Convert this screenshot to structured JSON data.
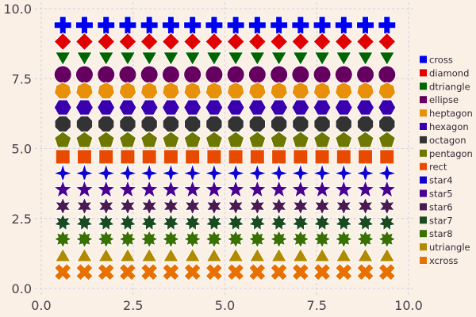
{
  "chart_data": {
    "type": "scatter",
    "title": "",
    "xlabel": "",
    "ylabel": "",
    "xlim": [
      0,
      10
    ],
    "ylim": [
      0,
      10
    ],
    "x_ticks": [
      "0.0",
      "2.5",
      "5.0",
      "7.5",
      "10.0"
    ],
    "y_ticks": [
      "0.0",
      "2.5",
      "5.0",
      "7.5",
      "10.0"
    ],
    "grid": true,
    "legend_placement": "right",
    "x": [
      0.588,
      1.176,
      1.765,
      2.353,
      2.941,
      3.529,
      4.118,
      4.706,
      5.294,
      5.882,
      6.471,
      7.059,
      7.647,
      8.235,
      8.824,
      9.412
    ],
    "series": [
      {
        "name": "cross",
        "shape": "cross",
        "y": 9.412,
        "color": "#0000f0"
      },
      {
        "name": "diamond",
        "shape": "diamond",
        "y": 8.824,
        "color": "#e00000"
      },
      {
        "name": "dtriangle",
        "shape": "dtriangle",
        "y": 8.235,
        "color": "#006400"
      },
      {
        "name": "ellipse",
        "shape": "ellipse",
        "y": 7.647,
        "color": "#650060"
      },
      {
        "name": "heptagon",
        "shape": "heptagon",
        "y": 7.059,
        "color": "#e8900a"
      },
      {
        "name": "hexagon",
        "shape": "hexagon",
        "y": 6.471,
        "color": "#3a00b0"
      },
      {
        "name": "octagon",
        "shape": "octagon",
        "y": 5.882,
        "color": "#333333"
      },
      {
        "name": "pentagon",
        "shape": "pentagon",
        "y": 5.294,
        "color": "#6e7800"
      },
      {
        "name": "rect",
        "shape": "rect",
        "y": 4.706,
        "color": "#e84a00"
      },
      {
        "name": "star4",
        "shape": "star4",
        "y": 4.118,
        "color": "#1000d0"
      },
      {
        "name": "star5",
        "shape": "star5",
        "y": 3.529,
        "color": "#4a0090"
      },
      {
        "name": "star6",
        "shape": "star6",
        "y": 2.941,
        "color": "#4a1a50"
      },
      {
        "name": "star7",
        "shape": "star7",
        "y": 2.353,
        "color": "#1a4a20"
      },
      {
        "name": "star8",
        "shape": "star8",
        "y": 1.765,
        "color": "#3a7000"
      },
      {
        "name": "utriangle",
        "shape": "utriangle",
        "y": 1.176,
        "color": "#b08a00"
      },
      {
        "name": "xcross",
        "shape": "xcross",
        "y": 0.588,
        "color": "#e87000"
      }
    ]
  }
}
